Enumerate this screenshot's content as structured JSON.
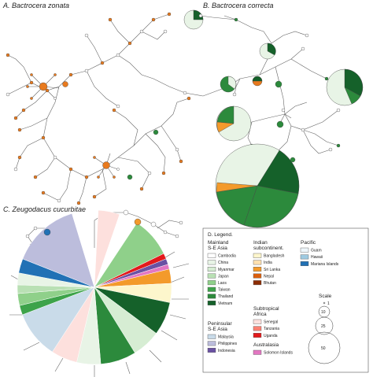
{
  "panels": {
    "a": "A. Bactrocera zonata",
    "b": "B. Bactrocera correcta",
    "c": "C. Zeugodacus cucurbitae"
  },
  "legend": {
    "title": "D. Legend.",
    "groups": [
      {
        "title": [
          "Mainland",
          "S-E Asia"
        ],
        "items": [
          {
            "name": "Cambodia",
            "color": "#ffffff"
          },
          {
            "name": "China",
            "color": "#e8f4e6"
          },
          {
            "name": "Myanmar",
            "color": "#d6edd3"
          },
          {
            "name": "Japan",
            "color": "#b9e0b4"
          },
          {
            "name": "Laos",
            "color": "#8fd08a"
          },
          {
            "name": "Taiwan",
            "color": "#3da34a"
          },
          {
            "name": "Thailand",
            "color": "#2c8a3c"
          },
          {
            "name": "Vietnam",
            "color": "#15612a"
          }
        ]
      },
      {
        "title": [
          "Peninsular",
          "S-E Asia"
        ],
        "items": [
          {
            "name": "Malaysia",
            "color": "#c9dbe9"
          },
          {
            "name": "Philippines",
            "color": "#bcbddc"
          },
          {
            "name": "Indonesia",
            "color": "#6a51a3"
          }
        ]
      },
      {
        "title": [
          "Indian",
          "subcontinent."
        ],
        "items": [
          {
            "name": "Bangladesh",
            "color": "#fdf6cc"
          },
          {
            "name": "India",
            "color": "#fde0b0"
          },
          {
            "name": "Sri Lanka",
            "color": "#f39a2b"
          },
          {
            "name": "Nepal",
            "color": "#d95f0e"
          },
          {
            "name": "Bhutan",
            "color": "#8c2d04"
          }
        ]
      },
      {
        "title": [
          "Subtropical",
          "Africa"
        ],
        "items": [
          {
            "name": "Senegal",
            "color": "#fde0dd"
          },
          {
            "name": "Tanzania",
            "color": "#fb8072"
          },
          {
            "name": "Uganda",
            "color": "#e31a1c"
          }
        ]
      },
      {
        "title": [
          "Australasia"
        ],
        "items": [
          {
            "name": "Solomon Islands",
            "color": "#e377c2"
          }
        ]
      },
      {
        "title": [
          "Pacific"
        ],
        "items": [
          {
            "name": "Guam",
            "color": "#eef6fb"
          },
          {
            "name": "Hawaii",
            "color": "#9ecae1"
          },
          {
            "name": "Mariana Islands",
            "color": "#2171b5"
          }
        ]
      }
    ],
    "scale": {
      "title": "Scale",
      "values": [
        "1",
        "10",
        "25",
        "50"
      ]
    }
  },
  "colors": {
    "edge": "#555555",
    "node_orange": "#e87a1e",
    "node_green": "#2c8a3c"
  }
}
